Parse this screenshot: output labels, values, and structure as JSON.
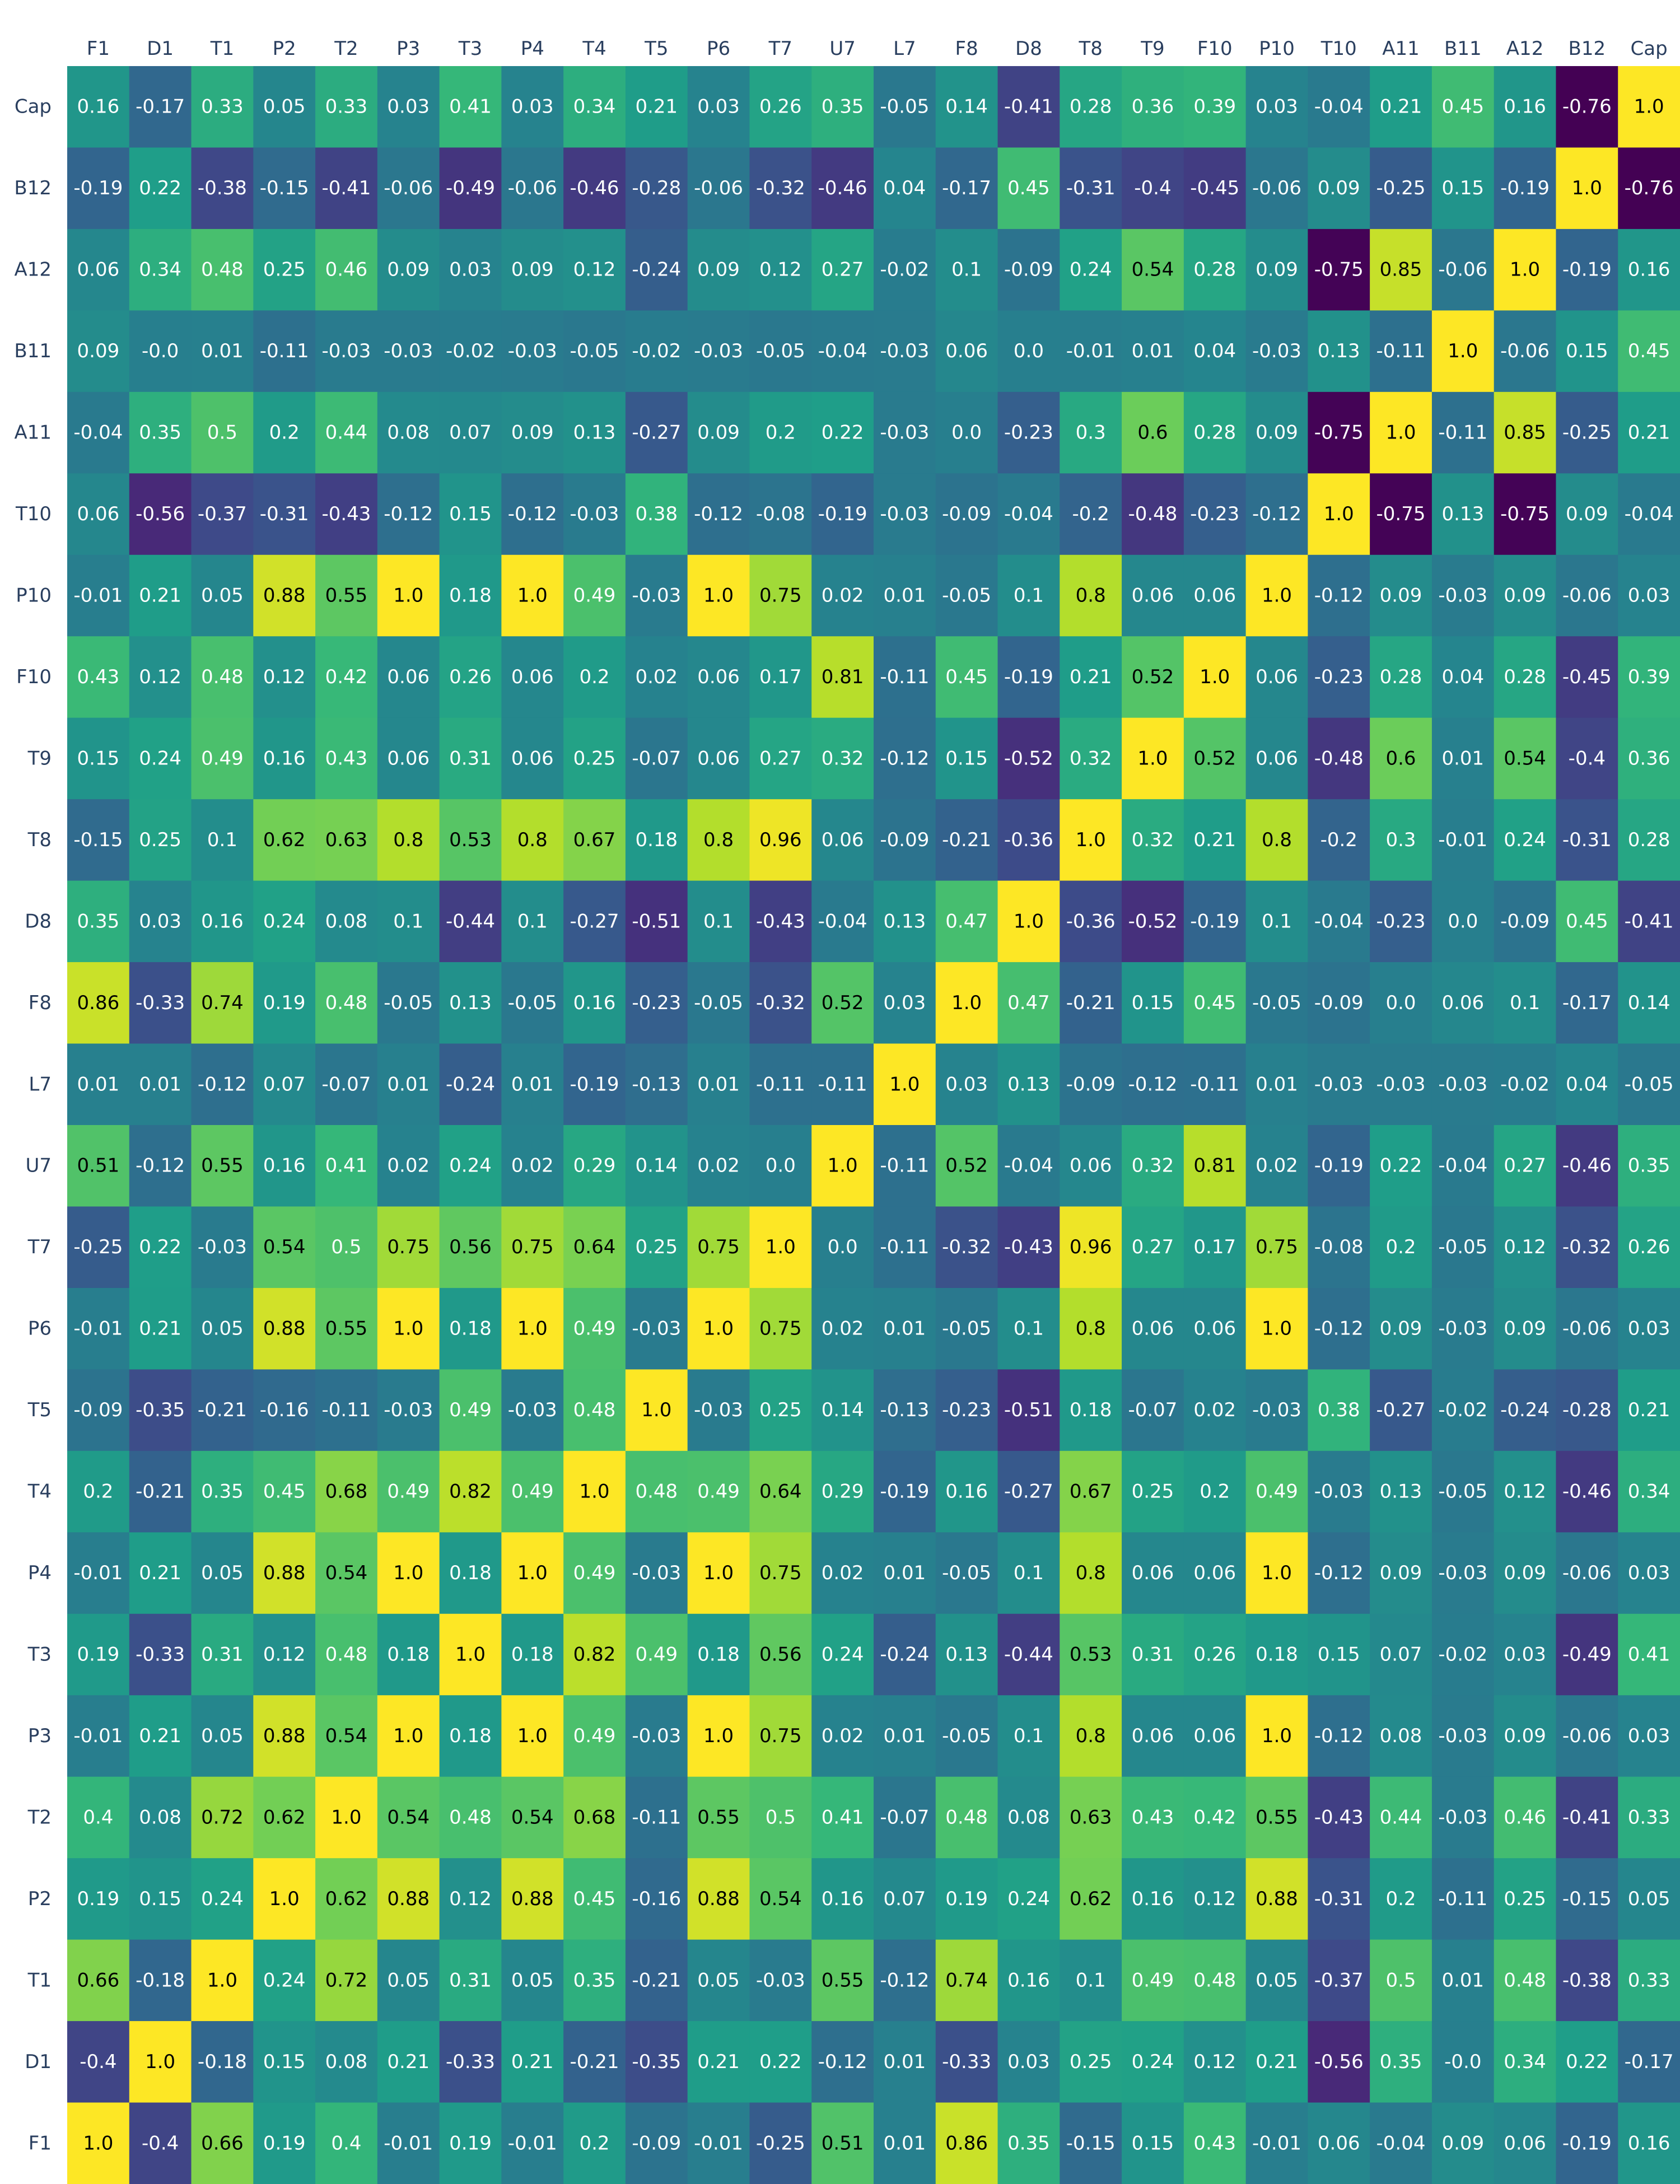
{
  "chart_data": {
    "type": "heatmap",
    "colorscale": "viridis",
    "zmin": -0.76,
    "zmax": 1.0,
    "x_labels": [
      "F1",
      "D1",
      "T1",
      "P2",
      "T2",
      "P3",
      "T3",
      "P4",
      "T4",
      "T5",
      "P6",
      "T7",
      "U7",
      "L7",
      "F8",
      "D8",
      "T8",
      "T9",
      "F10",
      "P10",
      "T10",
      "A11",
      "B11",
      "A12",
      "B12",
      "Cap"
    ],
    "y_labels_top_to_bottom": [
      "Cap",
      "B12",
      "A12",
      "B11",
      "A11",
      "T10",
      "P10",
      "F10",
      "T9",
      "T8",
      "D8",
      "F8",
      "L7",
      "U7",
      "T7",
      "P6",
      "T5",
      "T4",
      "P4",
      "T3",
      "P3",
      "T2",
      "P2",
      "T1",
      "D1",
      "F1"
    ],
    "rows": [
      {
        "label": "Cap",
        "values": [
          "0.16",
          "-0.17",
          "0.33",
          "0.05",
          "0.33",
          "0.03",
          "0.41",
          "0.03",
          "0.34",
          "0.21",
          "0.03",
          "0.26",
          "0.35",
          "-0.05",
          "0.14",
          "-0.41",
          "0.28",
          "0.36",
          "0.39",
          "0.03",
          "-0.04",
          "0.21",
          "0.45",
          "0.16",
          "-0.76",
          "1.0"
        ]
      },
      {
        "label": "B12",
        "values": [
          "-0.19",
          "0.22",
          "-0.38",
          "-0.15",
          "-0.41",
          "-0.06",
          "-0.49",
          "-0.06",
          "-0.46",
          "-0.28",
          "-0.06",
          "-0.32",
          "-0.46",
          "0.04",
          "-0.17",
          "0.45",
          "-0.31",
          "-0.4",
          "-0.45",
          "-0.06",
          "0.09",
          "-0.25",
          "0.15",
          "-0.19",
          "1.0",
          "-0.76"
        ]
      },
      {
        "label": "A12",
        "values": [
          "0.06",
          "0.34",
          "0.48",
          "0.25",
          "0.46",
          "0.09",
          "0.03",
          "0.09",
          "0.12",
          "-0.24",
          "0.09",
          "0.12",
          "0.27",
          "-0.02",
          "0.1",
          "-0.09",
          "0.24",
          "0.54",
          "0.28",
          "0.09",
          "-0.75",
          "0.85",
          "-0.06",
          "1.0",
          "-0.19",
          "0.16"
        ]
      },
      {
        "label": "B11",
        "values": [
          "0.09",
          "-0.0",
          "0.01",
          "-0.11",
          "-0.03",
          "-0.03",
          "-0.02",
          "-0.03",
          "-0.05",
          "-0.02",
          "-0.03",
          "-0.05",
          "-0.04",
          "-0.03",
          "0.06",
          "0.0",
          "-0.01",
          "0.01",
          "0.04",
          "-0.03",
          "0.13",
          "-0.11",
          "1.0",
          "-0.06",
          "0.15",
          "0.45"
        ]
      },
      {
        "label": "A11",
        "values": [
          "-0.04",
          "0.35",
          "0.5",
          "0.2",
          "0.44",
          "0.08",
          "0.07",
          "0.09",
          "0.13",
          "-0.27",
          "0.09",
          "0.2",
          "0.22",
          "-0.03",
          "0.0",
          "-0.23",
          "0.3",
          "0.6",
          "0.28",
          "0.09",
          "-0.75",
          "1.0",
          "-0.11",
          "0.85",
          "-0.25",
          "0.21"
        ]
      },
      {
        "label": "T10",
        "values": [
          "0.06",
          "-0.56",
          "-0.37",
          "-0.31",
          "-0.43",
          "-0.12",
          "0.15",
          "-0.12",
          "-0.03",
          "0.38",
          "-0.12",
          "-0.08",
          "-0.19",
          "-0.03",
          "-0.09",
          "-0.04",
          "-0.2",
          "-0.48",
          "-0.23",
          "-0.12",
          "1.0",
          "-0.75",
          "0.13",
          "-0.75",
          "0.09",
          "-0.04"
        ]
      },
      {
        "label": "P10",
        "values": [
          "-0.01",
          "0.21",
          "0.05",
          "0.88",
          "0.55",
          "1.0",
          "0.18",
          "1.0",
          "0.49",
          "-0.03",
          "1.0",
          "0.75",
          "0.02",
          "0.01",
          "-0.05",
          "0.1",
          "0.8",
          "0.06",
          "0.06",
          "1.0",
          "-0.12",
          "0.09",
          "-0.03",
          "0.09",
          "-0.06",
          "0.03"
        ]
      },
      {
        "label": "F10",
        "values": [
          "0.43",
          "0.12",
          "0.48",
          "0.12",
          "0.42",
          "0.06",
          "0.26",
          "0.06",
          "0.2",
          "0.02",
          "0.06",
          "0.17",
          "0.81",
          "-0.11",
          "0.45",
          "-0.19",
          "0.21",
          "0.52",
          "1.0",
          "0.06",
          "-0.23",
          "0.28",
          "0.04",
          "0.28",
          "-0.45",
          "0.39"
        ]
      },
      {
        "label": "T9",
        "values": [
          "0.15",
          "0.24",
          "0.49",
          "0.16",
          "0.43",
          "0.06",
          "0.31",
          "0.06",
          "0.25",
          "-0.07",
          "0.06",
          "0.27",
          "0.32",
          "-0.12",
          "0.15",
          "-0.52",
          "0.32",
          "1.0",
          "0.52",
          "0.06",
          "-0.48",
          "0.6",
          "0.01",
          "0.54",
          "-0.4",
          "0.36"
        ]
      },
      {
        "label": "T8",
        "values": [
          "-0.15",
          "0.25",
          "0.1",
          "0.62",
          "0.63",
          "0.8",
          "0.53",
          "0.8",
          "0.67",
          "0.18",
          "0.8",
          "0.96",
          "0.06",
          "-0.09",
          "-0.21",
          "-0.36",
          "1.0",
          "0.32",
          "0.21",
          "0.8",
          "-0.2",
          "0.3",
          "-0.01",
          "0.24",
          "-0.31",
          "0.28"
        ]
      },
      {
        "label": "D8",
        "values": [
          "0.35",
          "0.03",
          "0.16",
          "0.24",
          "0.08",
          "0.1",
          "-0.44",
          "0.1",
          "-0.27",
          "-0.51",
          "0.1",
          "-0.43",
          "-0.04",
          "0.13",
          "0.47",
          "1.0",
          "-0.36",
          "-0.52",
          "-0.19",
          "0.1",
          "-0.04",
          "-0.23",
          "0.0",
          "-0.09",
          "0.45",
          "-0.41"
        ]
      },
      {
        "label": "F8",
        "values": [
          "0.86",
          "-0.33",
          "0.74",
          "0.19",
          "0.48",
          "-0.05",
          "0.13",
          "-0.05",
          "0.16",
          "-0.23",
          "-0.05",
          "-0.32",
          "0.52",
          "0.03",
          "1.0",
          "0.47",
          "-0.21",
          "0.15",
          "0.45",
          "-0.05",
          "-0.09",
          "0.0",
          "0.06",
          "0.1",
          "-0.17",
          "0.14"
        ]
      },
      {
        "label": "L7",
        "values": [
          "0.01",
          "0.01",
          "-0.12",
          "0.07",
          "-0.07",
          "0.01",
          "-0.24",
          "0.01",
          "-0.19",
          "-0.13",
          "0.01",
          "-0.11",
          "-0.11",
          "1.0",
          "0.03",
          "0.13",
          "-0.09",
          "-0.12",
          "-0.11",
          "0.01",
          "-0.03",
          "-0.03",
          "-0.03",
          "-0.02",
          "0.04",
          "-0.05"
        ]
      },
      {
        "label": "U7",
        "values": [
          "0.51",
          "-0.12",
          "0.55",
          "0.16",
          "0.41",
          "0.02",
          "0.24",
          "0.02",
          "0.29",
          "0.14",
          "0.02",
          "0.0",
          "1.0",
          "-0.11",
          "0.52",
          "-0.04",
          "0.06",
          "0.32",
          "0.81",
          "0.02",
          "-0.19",
          "0.22",
          "-0.04",
          "0.27",
          "-0.46",
          "0.35"
        ]
      },
      {
        "label": "T7",
        "values": [
          "-0.25",
          "0.22",
          "-0.03",
          "0.54",
          "0.5",
          "0.75",
          "0.56",
          "0.75",
          "0.64",
          "0.25",
          "0.75",
          "1.0",
          "0.0",
          "-0.11",
          "-0.32",
          "-0.43",
          "0.96",
          "0.27",
          "0.17",
          "0.75",
          "-0.08",
          "0.2",
          "-0.05",
          "0.12",
          "-0.32",
          "0.26"
        ]
      },
      {
        "label": "P6",
        "values": [
          "-0.01",
          "0.21",
          "0.05",
          "0.88",
          "0.55",
          "1.0",
          "0.18",
          "1.0",
          "0.49",
          "-0.03",
          "1.0",
          "0.75",
          "0.02",
          "0.01",
          "-0.05",
          "0.1",
          "0.8",
          "0.06",
          "0.06",
          "1.0",
          "-0.12",
          "0.09",
          "-0.03",
          "0.09",
          "-0.06",
          "0.03"
        ]
      },
      {
        "label": "T5",
        "values": [
          "-0.09",
          "-0.35",
          "-0.21",
          "-0.16",
          "-0.11",
          "-0.03",
          "0.49",
          "-0.03",
          "0.48",
          "1.0",
          "-0.03",
          "0.25",
          "0.14",
          "-0.13",
          "-0.23",
          "-0.51",
          "0.18",
          "-0.07",
          "0.02",
          "-0.03",
          "0.38",
          "-0.27",
          "-0.02",
          "-0.24",
          "-0.28",
          "0.21"
        ]
      },
      {
        "label": "T4",
        "values": [
          "0.2",
          "-0.21",
          "0.35",
          "0.45",
          "0.68",
          "0.49",
          "0.82",
          "0.49",
          "1.0",
          "0.48",
          "0.49",
          "0.64",
          "0.29",
          "-0.19",
          "0.16",
          "-0.27",
          "0.67",
          "0.25",
          "0.2",
          "0.49",
          "-0.03",
          "0.13",
          "-0.05",
          "0.12",
          "-0.46",
          "0.34"
        ]
      },
      {
        "label": "P4",
        "values": [
          "-0.01",
          "0.21",
          "0.05",
          "0.88",
          "0.54",
          "1.0",
          "0.18",
          "1.0",
          "0.49",
          "-0.03",
          "1.0",
          "0.75",
          "0.02",
          "0.01",
          "-0.05",
          "0.1",
          "0.8",
          "0.06",
          "0.06",
          "1.0",
          "-0.12",
          "0.09",
          "-0.03",
          "0.09",
          "-0.06",
          "0.03"
        ]
      },
      {
        "label": "T3",
        "values": [
          "0.19",
          "-0.33",
          "0.31",
          "0.12",
          "0.48",
          "0.18",
          "1.0",
          "0.18",
          "0.82",
          "0.49",
          "0.18",
          "0.56",
          "0.24",
          "-0.24",
          "0.13",
          "-0.44",
          "0.53",
          "0.31",
          "0.26",
          "0.18",
          "0.15",
          "0.07",
          "-0.02",
          "0.03",
          "-0.49",
          "0.41"
        ]
      },
      {
        "label": "P3",
        "values": [
          "-0.01",
          "0.21",
          "0.05",
          "0.88",
          "0.54",
          "1.0",
          "0.18",
          "1.0",
          "0.49",
          "-0.03",
          "1.0",
          "0.75",
          "0.02",
          "0.01",
          "-0.05",
          "0.1",
          "0.8",
          "0.06",
          "0.06",
          "1.0",
          "-0.12",
          "0.08",
          "-0.03",
          "0.09",
          "-0.06",
          "0.03"
        ]
      },
      {
        "label": "T2",
        "values": [
          "0.4",
          "0.08",
          "0.72",
          "0.62",
          "1.0",
          "0.54",
          "0.48",
          "0.54",
          "0.68",
          "-0.11",
          "0.55",
          "0.5",
          "0.41",
          "-0.07",
          "0.48",
          "0.08",
          "0.63",
          "0.43",
          "0.42",
          "0.55",
          "-0.43",
          "0.44",
          "-0.03",
          "0.46",
          "-0.41",
          "0.33"
        ]
      },
      {
        "label": "P2",
        "values": [
          "0.19",
          "0.15",
          "0.24",
          "1.0",
          "0.62",
          "0.88",
          "0.12",
          "0.88",
          "0.45",
          "-0.16",
          "0.88",
          "0.54",
          "0.16",
          "0.07",
          "0.19",
          "0.24",
          "0.62",
          "0.16",
          "0.12",
          "0.88",
          "-0.31",
          "0.2",
          "-0.11",
          "0.25",
          "-0.15",
          "0.05"
        ]
      },
      {
        "label": "T1",
        "values": [
          "0.66",
          "-0.18",
          "1.0",
          "0.24",
          "0.72",
          "0.05",
          "0.31",
          "0.05",
          "0.35",
          "-0.21",
          "0.05",
          "-0.03",
          "0.55",
          "-0.12",
          "0.74",
          "0.16",
          "0.1",
          "0.49",
          "0.48",
          "0.05",
          "-0.37",
          "0.5",
          "0.01",
          "0.48",
          "-0.38",
          "0.33"
        ]
      },
      {
        "label": "D1",
        "values": [
          "-0.4",
          "1.0",
          "-0.18",
          "0.15",
          "0.08",
          "0.21",
          "-0.33",
          "0.21",
          "-0.21",
          "-0.35",
          "0.21",
          "0.22",
          "-0.12",
          "0.01",
          "-0.33",
          "0.03",
          "0.25",
          "0.24",
          "0.12",
          "0.21",
          "-0.56",
          "0.35",
          "-0.0",
          "0.34",
          "0.22",
          "-0.17"
        ]
      },
      {
        "label": "F1",
        "values": [
          "1.0",
          "-0.4",
          "0.66",
          "0.19",
          "0.4",
          "-0.01",
          "0.19",
          "-0.01",
          "0.2",
          "-0.09",
          "-0.01",
          "-0.25",
          "0.51",
          "0.01",
          "0.86",
          "0.35",
          "-0.15",
          "0.15",
          "0.43",
          "-0.01",
          "0.06",
          "-0.04",
          "0.09",
          "0.06",
          "-0.19",
          "0.16"
        ]
      }
    ]
  }
}
